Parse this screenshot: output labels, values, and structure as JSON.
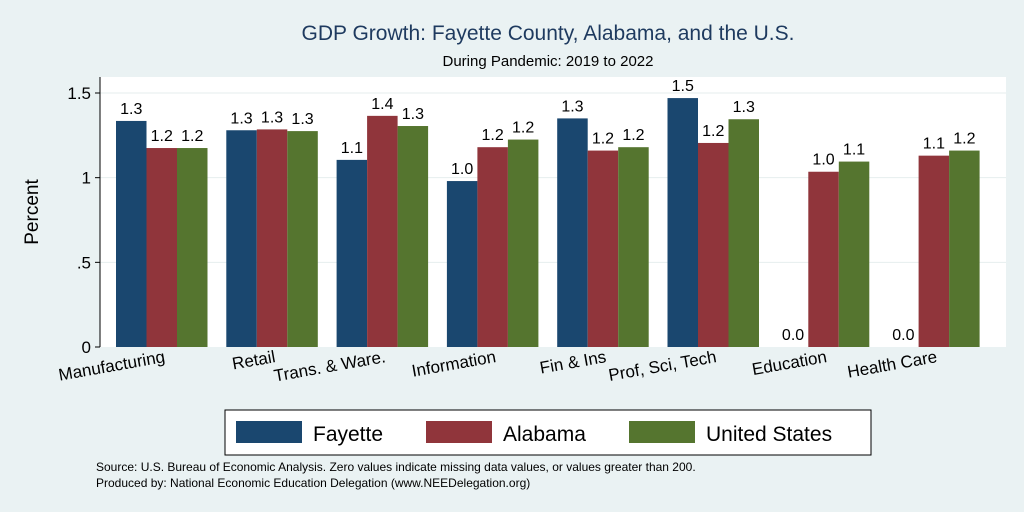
{
  "chart_data": {
    "type": "bar",
    "title": "GDP Growth: Fayette County, Alabama, and the U.S.",
    "subtitle": "During Pandemic: 2019 to 2022",
    "ylabel": "Percent",
    "xlabel": "",
    "ylim": [
      0,
      1.6
    ],
    "yticks": [
      0,
      0.5,
      1,
      1.5
    ],
    "ytick_labels": [
      "0",
      ".5",
      "1",
      "1.5"
    ],
    "grid": true,
    "legend_position": "bottom",
    "categories": [
      "Manufacturing",
      "Retail",
      "Trans. & Ware.",
      "Information",
      "Fin & Ins",
      "Prof, Sci, Tech",
      "Education",
      "Health Care"
    ],
    "series": [
      {
        "name": "Fayette",
        "color": "#1a476f",
        "values": [
          1.335,
          1.28,
          1.105,
          0.98,
          1.35,
          1.47,
          0,
          0
        ],
        "labels": [
          "1.3",
          "1.3",
          "1.1",
          "1.0",
          "1.3",
          "1.5",
          "0.0",
          "0.0"
        ]
      },
      {
        "name": "Alabama",
        "color": "#90353b",
        "values": [
          1.175,
          1.285,
          1.365,
          1.18,
          1.16,
          1.205,
          1.035,
          1.13
        ],
        "labels": [
          "1.2",
          "1.3",
          "1.4",
          "1.2",
          "1.2",
          "1.2",
          "1.0",
          "1.1"
        ]
      },
      {
        "name": "United States",
        "color": "#55752f",
        "values": [
          1.175,
          1.275,
          1.305,
          1.225,
          1.18,
          1.345,
          1.095,
          1.16
        ],
        "labels": [
          "1.2",
          "1.3",
          "1.3",
          "1.2",
          "1.2",
          "1.3",
          "1.1",
          "1.2"
        ]
      }
    ],
    "notes": [
      "Source: U.S. Bureau of Economic Analysis. Zero values indicate missing data values, or values greater than 200.",
      "Produced by: National Economic Education Delegation (www.NEEDelegation.org)"
    ]
  }
}
